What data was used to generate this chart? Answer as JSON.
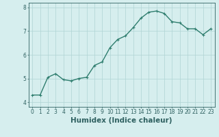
{
  "x": [
    0,
    1,
    2,
    3,
    4,
    5,
    6,
    7,
    8,
    9,
    10,
    11,
    12,
    13,
    14,
    15,
    16,
    17,
    18,
    19,
    20,
    21,
    22,
    23
  ],
  "y": [
    4.3,
    4.3,
    5.05,
    5.2,
    4.95,
    4.9,
    5.0,
    5.05,
    5.55,
    5.7,
    6.3,
    6.65,
    6.8,
    7.15,
    7.55,
    7.8,
    7.85,
    7.75,
    7.4,
    7.35,
    7.1,
    7.1,
    6.85,
    7.1
  ],
  "line_color": "#2e7d6e",
  "marker": "+",
  "marker_size": 3,
  "bg_color": "#d6eeee",
  "grid_color": "#afd4d4",
  "xlabel": "Humidex (Indice chaleur)",
  "ylim": [
    3.8,
    8.2
  ],
  "xlim": [
    -0.5,
    23.5
  ],
  "yticks": [
    4,
    5,
    6,
    7,
    8
  ],
  "xticks": [
    0,
    1,
    2,
    3,
    4,
    5,
    6,
    7,
    8,
    9,
    10,
    11,
    12,
    13,
    14,
    15,
    16,
    17,
    18,
    19,
    20,
    21,
    22,
    23
  ],
  "tick_label_fontsize": 5.5,
  "xlabel_fontsize": 7.5,
  "axis_color": "#2e6060",
  "linewidth": 1.0
}
